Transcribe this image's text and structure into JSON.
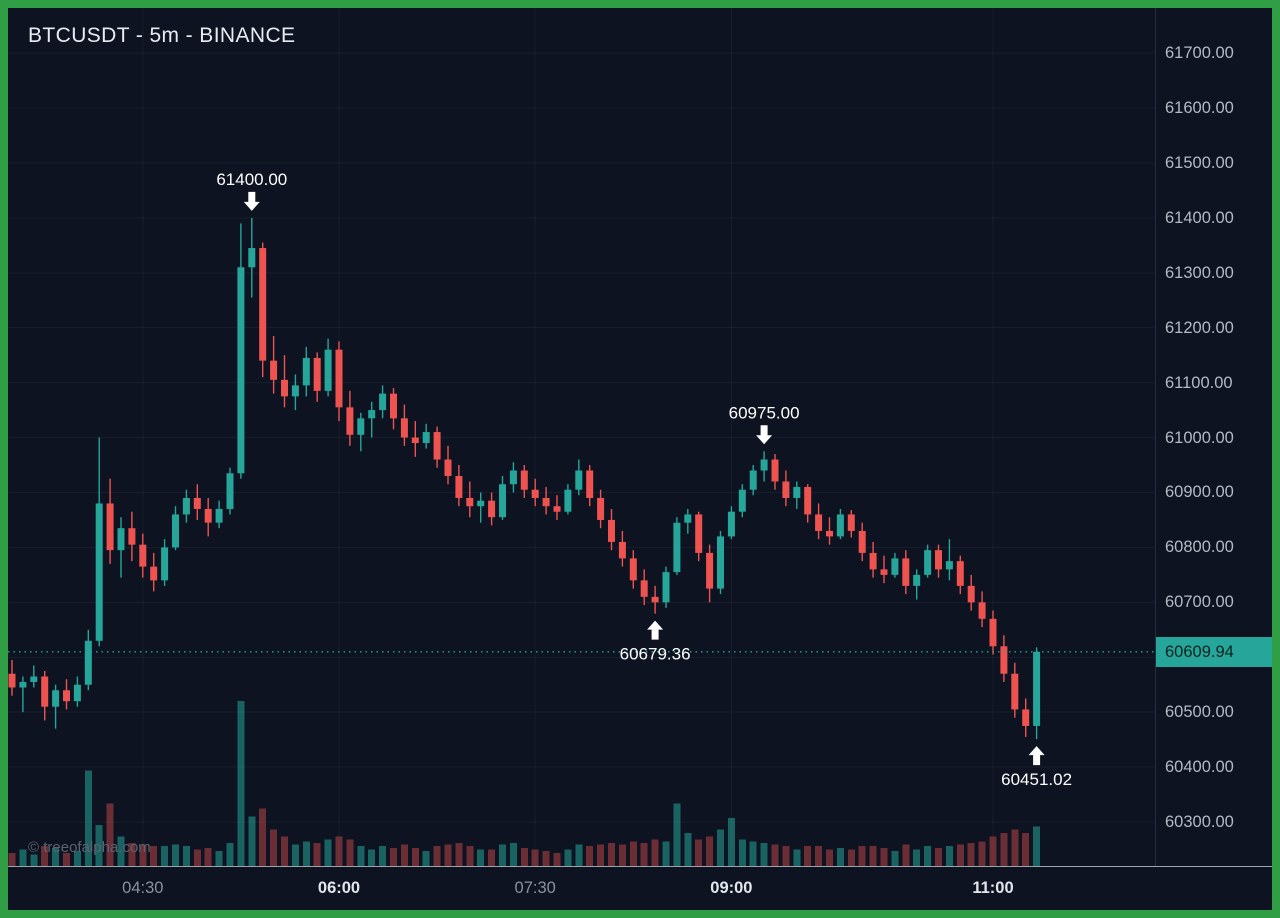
{
  "header": {
    "title": "BTCUSDT - 5m - BINANCE"
  },
  "watermark": "© treeofalpha.com",
  "colors": {
    "frame_green": "#2f9e44",
    "chart_bg": "#0d1321",
    "candle_up": "#26a69a",
    "candle_down": "#ef5350",
    "volume_up": "rgba(38,166,154,0.55)",
    "volume_down": "rgba(239,83,80,0.42)",
    "grid_line": "rgba(160,174,200,0.07)",
    "axis_text": "#b4b9c4",
    "axis_text_strong": "#e3e6ec",
    "axis_text_dim": "#8b919d",
    "axis_line_h": "#9fa3ac",
    "axis_line_v": "#262d3c",
    "last_price_bg": "#26a69a",
    "last_price_text": "#0b231f",
    "price_line": "#26a69a",
    "annotation_text": "#ffffff",
    "title_text": "#e8ebf1",
    "watermark_text": "#5c6370"
  },
  "price_axis": {
    "ticks": [
      "61700.00",
      "61600.00",
      "61500.00",
      "61400.00",
      "61300.00",
      "61200.00",
      "61100.00",
      "61000.00",
      "60900.00",
      "60800.00",
      "60700.00",
      "60600.00",
      "60500.00",
      "60400.00",
      "60300.00"
    ],
    "last_price_label": "60609.94"
  },
  "time_axis": {
    "labels": [
      {
        "text": "04:30",
        "index": 12,
        "strong": false
      },
      {
        "text": "06:00",
        "index": 30,
        "strong": true
      },
      {
        "text": "07:30",
        "index": 48,
        "strong": false
      },
      {
        "text": "09:00",
        "index": 66,
        "strong": true
      },
      {
        "text": "11:00",
        "index": 90,
        "strong": true
      }
    ]
  },
  "chart_data": {
    "type": "candlestick",
    "title": "BTCUSDT - 5m - BINANCE",
    "symbol": "BTCUSDT",
    "interval": "5m",
    "exchange": "BINANCE",
    "start_time": "03:30",
    "step_minutes": 5,
    "price_range": [
      60220,
      61782
    ],
    "last_price": 60609.94,
    "columns": [
      "open",
      "high",
      "low",
      "close",
      "volume_rel"
    ],
    "candles": [
      [
        60570,
        60595,
        60530,
        60545,
        8
      ],
      [
        60545,
        60565,
        60500,
        60555,
        10
      ],
      [
        60555,
        60585,
        60545,
        60565,
        7
      ],
      [
        60565,
        60575,
        60485,
        60510,
        12
      ],
      [
        60510,
        60550,
        60470,
        60540,
        11
      ],
      [
        60540,
        60560,
        60505,
        60520,
        8
      ],
      [
        60520,
        60565,
        60510,
        60550,
        9
      ],
      [
        60550,
        60650,
        60540,
        60630,
        58
      ],
      [
        60630,
        61000,
        60620,
        60880,
        25
      ],
      [
        60880,
        60925,
        60770,
        60795,
        38
      ],
      [
        60795,
        60855,
        60745,
        60835,
        18
      ],
      [
        60835,
        60865,
        60775,
        60805,
        14
      ],
      [
        60805,
        60825,
        60745,
        60765,
        13
      ],
      [
        60765,
        60790,
        60720,
        60740,
        12
      ],
      [
        60740,
        60815,
        60730,
        60800,
        12
      ],
      [
        60800,
        60875,
        60795,
        60860,
        13
      ],
      [
        60860,
        60905,
        60845,
        60890,
        12
      ],
      [
        60890,
        60915,
        60850,
        60870,
        10
      ],
      [
        60870,
        60890,
        60820,
        60845,
        11
      ],
      [
        60845,
        60885,
        60835,
        60870,
        9
      ],
      [
        60870,
        60945,
        60860,
        60935,
        14
      ],
      [
        60935,
        61390,
        60925,
        61310,
        100
      ],
      [
        61310,
        61400,
        61255,
        61345,
        30
      ],
      [
        61345,
        61355,
        61110,
        61140,
        35
      ],
      [
        61140,
        61185,
        61080,
        61105,
        22
      ],
      [
        61105,
        61150,
        61055,
        61075,
        18
      ],
      [
        61075,
        61115,
        61050,
        61095,
        13
      ],
      [
        61095,
        61165,
        61075,
        61145,
        15
      ],
      [
        61145,
        61155,
        61065,
        61085,
        14
      ],
      [
        61085,
        61180,
        61075,
        61160,
        16
      ],
      [
        61160,
        61175,
        61030,
        61055,
        18
      ],
      [
        61055,
        61085,
        60985,
        61005,
        16
      ],
      [
        61005,
        61045,
        60975,
        61035,
        12
      ],
      [
        61035,
        61065,
        61000,
        61050,
        10
      ],
      [
        61050,
        61095,
        61035,
        61080,
        12
      ],
      [
        61080,
        61090,
        61015,
        61035,
        11
      ],
      [
        61035,
        61060,
        60985,
        61000,
        13
      ],
      [
        61000,
        61030,
        60965,
        60990,
        11
      ],
      [
        60990,
        61025,
        60980,
        61010,
        9
      ],
      [
        61010,
        61020,
        60945,
        60960,
        12
      ],
      [
        60960,
        60985,
        60915,
        60930,
        13
      ],
      [
        60930,
        60950,
        60875,
        60890,
        14
      ],
      [
        60890,
        60920,
        60855,
        60875,
        12
      ],
      [
        60875,
        60900,
        60845,
        60885,
        10
      ],
      [
        60885,
        60900,
        60840,
        60855,
        10
      ],
      [
        60855,
        60930,
        60850,
        60915,
        13
      ],
      [
        60915,
        60955,
        60900,
        60940,
        14
      ],
      [
        60940,
        60950,
        60890,
        60905,
        11
      ],
      [
        60905,
        60925,
        60875,
        60890,
        10
      ],
      [
        60890,
        60910,
        60860,
        60875,
        9
      ],
      [
        60875,
        60895,
        60850,
        60865,
        8
      ],
      [
        60865,
        60915,
        60860,
        60905,
        10
      ],
      [
        60905,
        60960,
        60895,
        60940,
        13
      ],
      [
        60940,
        60950,
        60875,
        60890,
        12
      ],
      [
        60890,
        60905,
        60835,
        60850,
        13
      ],
      [
        60850,
        60870,
        60795,
        60810,
        14
      ],
      [
        60810,
        60830,
        60765,
        60780,
        13
      ],
      [
        60780,
        60795,
        60725,
        60740,
        15
      ],
      [
        60740,
        60760,
        60695,
        60710,
        14
      ],
      [
        60710,
        60730,
        60679.36,
        60700,
        16
      ],
      [
        60700,
        60765,
        60690,
        60755,
        15
      ],
      [
        60755,
        60855,
        60750,
        60845,
        38
      ],
      [
        60845,
        60870,
        60825,
        60860,
        20
      ],
      [
        60860,
        60865,
        60775,
        60790,
        16
      ],
      [
        60790,
        60805,
        60700,
        60725,
        18
      ],
      [
        60725,
        60830,
        60715,
        60820,
        22
      ],
      [
        60820,
        60875,
        60815,
        60865,
        29
      ],
      [
        60865,
        60915,
        60855,
        60905,
        16
      ],
      [
        60905,
        60950,
        60895,
        60940,
        15
      ],
      [
        60940,
        60975,
        60920,
        60960,
        14
      ],
      [
        60960,
        60970,
        60905,
        60920,
        13
      ],
      [
        60920,
        60940,
        60875,
        60890,
        12
      ],
      [
        60890,
        60920,
        60870,
        60910,
        10
      ],
      [
        60910,
        60915,
        60845,
        60860,
        12
      ],
      [
        60860,
        60880,
        60815,
        60830,
        12
      ],
      [
        60830,
        60855,
        60805,
        60820,
        10
      ],
      [
        60820,
        60870,
        60815,
        60860,
        11
      ],
      [
        60860,
        60868,
        60818,
        60830,
        10
      ],
      [
        60830,
        60845,
        60775,
        60790,
        12
      ],
      [
        60790,
        60810,
        60745,
        60760,
        12
      ],
      [
        60760,
        60785,
        60735,
        60750,
        11
      ],
      [
        60750,
        60790,
        60745,
        60780,
        9
      ],
      [
        60780,
        60795,
        60715,
        60730,
        13
      ],
      [
        60730,
        60760,
        60705,
        60750,
        10
      ],
      [
        60750,
        60805,
        60745,
        60795,
        12
      ],
      [
        60795,
        60805,
        60745,
        60760,
        11
      ],
      [
        60760,
        60815,
        60740,
        60775,
        12
      ],
      [
        60775,
        60785,
        60715,
        60730,
        13
      ],
      [
        60730,
        60750,
        60685,
        60700,
        14
      ],
      [
        60700,
        60720,
        60655,
        60670,
        15
      ],
      [
        60670,
        60685,
        60605,
        60620,
        18
      ],
      [
        60620,
        60640,
        60555,
        60570,
        20
      ],
      [
        60570,
        60590,
        60490,
        60505,
        22
      ],
      [
        60505,
        60525,
        60455,
        60475,
        20
      ],
      [
        60475,
        60618,
        60451.02,
        60609.94,
        24
      ]
    ],
    "annotations": [
      {
        "text": "61400.00",
        "candle_index": 22,
        "price": 61400,
        "direction": "down"
      },
      {
        "text": "60975.00",
        "candle_index": 69,
        "price": 60975,
        "direction": "down"
      },
      {
        "text": "60679.36",
        "candle_index": 59,
        "price": 60679.36,
        "direction": "up"
      },
      {
        "text": "60451.02",
        "candle_index": 94,
        "price": 60451.02,
        "direction": "up"
      }
    ],
    "legend": null,
    "xlabel": "",
    "ylabel": ""
  }
}
